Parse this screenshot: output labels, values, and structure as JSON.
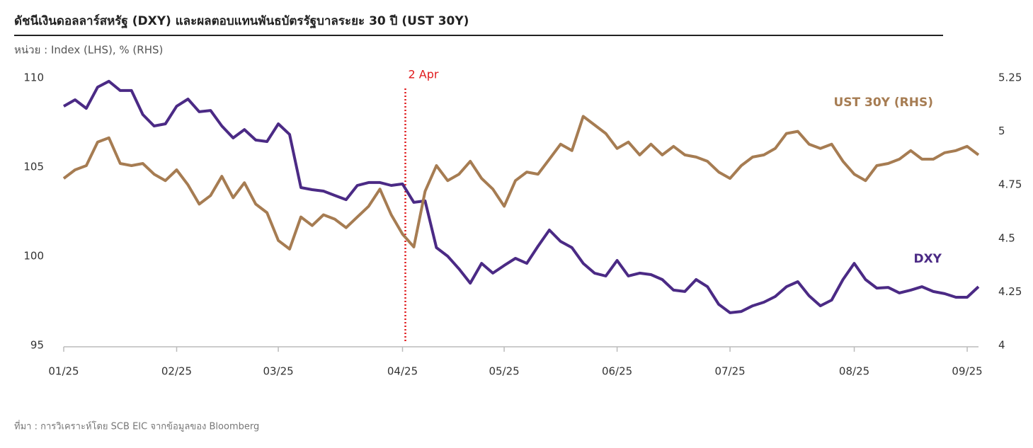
{
  "chart_data": {
    "type": "line",
    "title": "ดัชนีเงินดอลลาร์สหรัฐ (DXY) และผลตอบแทนพันธบัตรรัฐบาลระยะ  30 ปี (UST 30Y)",
    "subtitle": "หน่วย : Index (LHS), % (RHS)",
    "source": "ที่มา : การวิเคราะห์โดย SCB EIC จากข้อมูลของ Bloomberg",
    "annotation": {
      "text": "2 Apr",
      "category": "04/25",
      "color": "#e0191b"
    },
    "categories": [
      "01/25",
      null,
      null,
      null,
      null,
      null,
      null,
      null,
      null,
      null,
      "02/25",
      null,
      null,
      null,
      null,
      null,
      null,
      null,
      null,
      "03/25",
      null,
      null,
      null,
      null,
      null,
      null,
      null,
      null,
      null,
      null,
      "04/25",
      null,
      null,
      null,
      null,
      null,
      null,
      null,
      null,
      "05/25",
      null,
      null,
      null,
      null,
      null,
      null,
      null,
      null,
      null,
      "06/25",
      null,
      null,
      null,
      null,
      null,
      null,
      null,
      null,
      null,
      "07/25",
      null,
      null,
      null,
      null,
      null,
      null,
      null,
      null,
      null,
      null,
      "08/25",
      null,
      null,
      null,
      null,
      null,
      null,
      null,
      null,
      null,
      "09/25",
      null
    ],
    "series": [
      {
        "name": "DXY",
        "color": "#4b2a85",
        "axis": "y",
        "values": [
          108.41,
          108.77,
          108.29,
          109.48,
          109.81,
          109.29,
          109.29,
          107.94,
          107.3,
          107.42,
          108.41,
          108.81,
          108.1,
          108.17,
          107.3,
          106.63,
          107.1,
          106.51,
          106.43,
          107.42,
          106.83,
          103.85,
          103.73,
          103.65,
          103.41,
          103.17,
          103.97,
          104.13,
          104.13,
          103.97,
          104.05,
          103.02,
          103.1,
          100.48,
          100.0,
          99.29,
          98.49,
          99.6,
          99.05,
          99.48,
          99.88,
          99.6,
          100.56,
          101.47,
          100.83,
          100.48,
          99.6,
          99.05,
          98.89,
          99.76,
          98.89,
          99.05,
          98.97,
          98.69,
          98.1,
          98.02,
          98.69,
          98.29,
          97.3,
          96.83,
          96.9,
          97.22,
          97.42,
          97.74,
          98.29,
          98.57,
          97.78,
          97.22,
          97.54,
          98.69,
          99.6,
          98.69,
          98.21,
          98.25,
          97.94,
          98.1,
          98.29,
          98.02,
          97.9,
          97.7,
          97.7,
          98.29
        ]
      },
      {
        "name": "UST 30Y (RHS)",
        "color": "#a67c52",
        "axis": "y2",
        "values": [
          4.78,
          4.82,
          4.84,
          4.95,
          4.97,
          4.85,
          4.84,
          4.85,
          4.8,
          4.77,
          4.82,
          4.75,
          4.66,
          4.7,
          4.79,
          4.69,
          4.76,
          4.66,
          4.62,
          4.49,
          4.45,
          4.6,
          4.56,
          4.61,
          4.59,
          4.55,
          4.6,
          4.65,
          4.73,
          4.61,
          4.52,
          4.46,
          4.72,
          4.84,
          4.77,
          4.8,
          4.86,
          4.78,
          4.73,
          4.65,
          4.77,
          4.81,
          4.8,
          4.87,
          4.94,
          4.91,
          5.07,
          5.03,
          4.99,
          4.92,
          4.95,
          4.89,
          4.94,
          4.89,
          4.93,
          4.89,
          4.88,
          4.86,
          4.81,
          4.78,
          4.84,
          4.88,
          4.89,
          4.92,
          4.99,
          5.0,
          4.94,
          4.92,
          4.94,
          4.86,
          4.8,
          4.77,
          4.84,
          4.85,
          4.87,
          4.91,
          4.87,
          4.87,
          4.9,
          4.91,
          4.93,
          4.89
        ]
      }
    ],
    "ylim": [
      95,
      110
    ],
    "yticks": [
      95,
      100,
      105,
      110
    ],
    "y2lim": [
      4,
      5.25
    ],
    "y2ticks": [
      4,
      4.25,
      4.5,
      4.75,
      5,
      5.25
    ],
    "grid": false
  }
}
